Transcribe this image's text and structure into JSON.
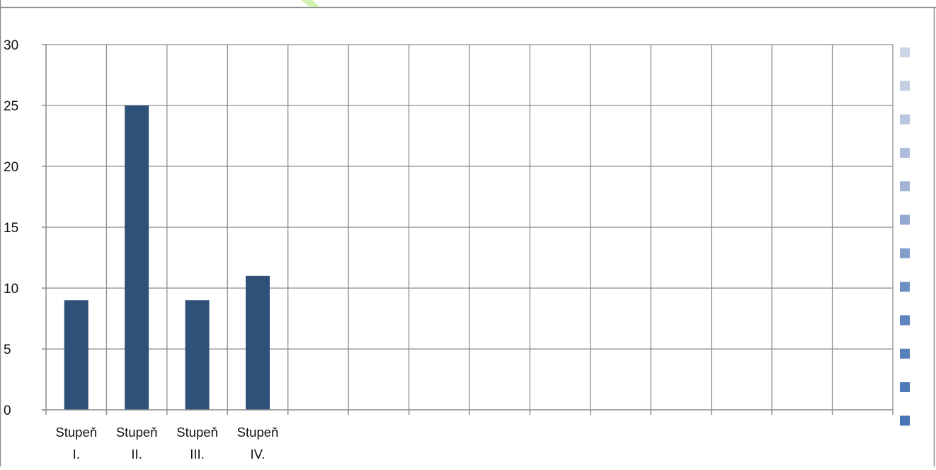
{
  "chart_data": {
    "type": "bar",
    "title": "",
    "xlabel": "",
    "ylabel": "",
    "categories": [
      [
        "Stupeň",
        "I."
      ],
      [
        "Stupeň",
        "II."
      ],
      [
        "Stupeň",
        "III."
      ],
      [
        "Stupeň",
        "IV."
      ],
      [],
      [],
      [],
      [],
      [],
      [],
      [],
      [],
      [],
      []
    ],
    "values": [
      9,
      25,
      9,
      11,
      null,
      null,
      null,
      null,
      null,
      null,
      null,
      null,
      null,
      null
    ],
    "ylim": [
      0,
      30
    ],
    "yticks": [
      0,
      5,
      10,
      15,
      20,
      25,
      30
    ],
    "grid": true,
    "legend_position": "right",
    "colors": {
      "bar": "#2f5078",
      "grid": "#8c8c8c",
      "legend_swatches": [
        "#cdd6e6",
        "#c4cfe3",
        "#bac7e0",
        "#afbedb",
        "#a2b5d6",
        "#93a9d0",
        "#839eca",
        "#6f8fc2",
        "#5f83bc",
        "#5580ba",
        "#4f7cb8",
        "#4876b4"
      ]
    }
  }
}
